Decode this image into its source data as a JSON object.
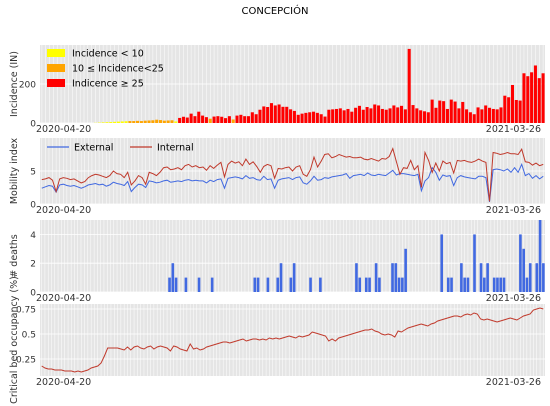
{
  "title": "CONCEPCIÓN",
  "colors": {
    "panel_bg": "#e5e5e5",
    "grid": "#ffffff",
    "low": "#ffff00",
    "mid": "#ffa500",
    "high": "#ff0000",
    "external": "#4169e1",
    "internal": "#c0392b",
    "deaths": "#4169e1",
    "beds": "#c0392b"
  },
  "chart_data": [
    {
      "type": "bar",
      "ylabel": "Incidence (IN)",
      "x_start_label": "2020-04-20",
      "x_end_label": "2021-03-26",
      "ylim": [
        0,
        400
      ],
      "yticks": [
        0,
        200
      ],
      "legend": {
        "placement": "top-left",
        "entries": [
          "Incidence < 10",
          "10 ≤ Incidence<25",
          "Indicence ≥ 25"
        ]
      },
      "values": [
        0,
        0,
        0,
        0,
        0,
        0,
        0,
        0,
        0,
        0,
        0,
        0,
        0,
        0,
        1,
        2,
        3,
        4,
        5,
        6,
        7,
        8,
        9,
        10,
        10,
        11,
        10,
        12,
        13,
        14,
        17,
        15,
        12,
        13,
        14,
        8,
        26,
        32,
        28,
        48,
        35,
        58,
        38,
        30,
        22,
        33,
        35,
        32,
        25,
        35,
        18,
        38,
        42,
        35,
        35,
        55,
        45,
        68,
        85,
        82,
        102,
        90,
        95,
        83,
        83,
        70,
        62,
        42,
        48,
        52,
        55,
        58,
        52,
        45,
        33,
        68,
        70,
        72,
        75,
        65,
        72,
        58,
        78,
        88,
        68,
        82,
        75,
        95,
        90,
        72,
        68,
        75,
        90,
        80,
        88,
        70,
        380,
        92,
        75,
        65,
        60,
        55,
        120,
        78,
        115,
        112,
        72,
        120,
        110,
        75,
        108,
        70,
        55,
        45,
        80,
        70,
        90,
        78,
        72,
        70,
        80,
        140,
        132,
        195,
        118,
        115,
        255,
        240,
        260,
        295,
        230,
        255
      ],
      "categories_note": ""
    },
    {
      "type": "line",
      "ylabel": "Mobility index",
      "x_start_label": "2020-04-20",
      "x_end_label": "2021-03-26",
      "ylim": [
        0,
        10
      ],
      "yticks": [
        0,
        5
      ],
      "legend": {
        "placement": "top-left",
        "entries": [
          "External",
          "Internal"
        ]
      },
      "series": [
        {
          "name": "External",
          "values": [
            2.4,
            2.6,
            2.8,
            2.7,
            1.8,
            2.9,
            3.0,
            2.8,
            2.7,
            2.8,
            2.6,
            2.4,
            2.6,
            2.9,
            3.0,
            3.1,
            2.9,
            3.0,
            2.7,
            2.9,
            3.3,
            3.1,
            3.0,
            2.8,
            3.4,
            1.9,
            2.5,
            3.0,
            2.9,
            2.5,
            3.5,
            3.4,
            3.2,
            3.3,
            3.5,
            3.6,
            3.3,
            3.4,
            3.5,
            3.4,
            3.6,
            3.7,
            3.5,
            3.6,
            3.5,
            3.5,
            3.2,
            3.6,
            3.4,
            3.7,
            3.8,
            2.4,
            3.9,
            4.0,
            4.1,
            4.0,
            3.8,
            4.3,
            3.9,
            4.0,
            3.7,
            3.6,
            4.2,
            3.7,
            3.8,
            2.4,
            3.6,
            3.8,
            3.9,
            4.0,
            3.7,
            4.0,
            4.1,
            3.2,
            3.0,
            3.5,
            4.2,
            3.6,
            3.7,
            4.0,
            3.9,
            4.1,
            4.2,
            4.3,
            4.4,
            4.6,
            3.9,
            4.3,
            4.4,
            4.5,
            4.3,
            4.7,
            4.4,
            4.3,
            4.5,
            4.4,
            4.3,
            4.7,
            5.1,
            4.4,
            4.6,
            4.6,
            4.5,
            4.4,
            4.3,
            4.5,
            2.0,
            3.5,
            4.0,
            5.5,
            4.8,
            3.6,
            4.4,
            4.2,
            4.3,
            2.8,
            4.0,
            4.3,
            4.1,
            4.0,
            3.9,
            3.8,
            4.2,
            4.2,
            4.0,
            0.3,
            5.2,
            5.3,
            5.2,
            5.0,
            5.3,
            4.8,
            5.5,
            4.8,
            6.0,
            4.3,
            4.6,
            3.9,
            4.3,
            3.8,
            4.2
          ]
        },
        {
          "name": "Internal",
          "values": [
            3.7,
            3.8,
            4.0,
            3.6,
            1.9,
            3.8,
            4.0,
            3.9,
            3.7,
            3.8,
            3.5,
            3.2,
            3.4,
            4.0,
            4.3,
            4.5,
            4.4,
            4.2,
            4.0,
            4.3,
            5.0,
            4.6,
            4.5,
            4.0,
            4.8,
            2.9,
            3.5,
            4.3,
            4.0,
            3.0,
            4.8,
            4.6,
            4.3,
            4.8,
            5.5,
            5.6,
            5.2,
            5.3,
            5.5,
            5.2,
            5.8,
            6.0,
            5.6,
            5.8,
            5.5,
            5.6,
            5.1,
            5.8,
            5.4,
            5.9,
            6.3,
            4.1,
            6.0,
            6.5,
            6.2,
            6.4,
            5.8,
            6.8,
            6.0,
            6.4,
            5.7,
            4.8,
            5.7,
            6.0,
            5.8,
            3.9,
            5.4,
            5.3,
            5.5,
            5.6,
            5.0,
            5.6,
            5.8,
            4.5,
            4.2,
            5.2,
            7.1,
            5.6,
            6.5,
            7.5,
            7.6,
            7.0,
            7.2,
            7.5,
            7.3,
            7.1,
            7.2,
            7.0,
            7.0,
            7.1,
            6.8,
            6.7,
            6.9,
            6.7,
            6.5,
            6.9,
            6.8,
            7.2,
            8.4,
            6.4,
            4.5,
            5.5,
            5.4,
            6.6,
            5.2,
            5.8,
            2.5,
            7.8,
            6.6,
            4.8,
            6.2,
            5.0,
            6.5,
            6.1,
            6.3,
            4.7,
            6.6,
            6.5,
            6.6,
            6.4,
            6.3,
            6.5,
            6.8,
            6.5,
            6.3,
            0.4,
            7.8,
            7.7,
            7.5,
            7.6,
            7.8,
            7.6,
            7.6,
            7.5,
            8.3,
            6.4,
            6.3,
            5.9,
            6.2,
            5.8,
            6.0
          ]
        }
      ]
    },
    {
      "type": "bar",
      "ylabel": "# deaths",
      "x_start_label": "2020-04-20",
      "x_end_label": "2021-03-26",
      "ylim": [
        0,
        5
      ],
      "yticks": [
        0,
        2,
        4
      ],
      "values": [
        0,
        0,
        0,
        0,
        0,
        0,
        0,
        0,
        0,
        0,
        0,
        0,
        0,
        0,
        0,
        0,
        0,
        0,
        0,
        0,
        0,
        0,
        0,
        0,
        0,
        0,
        0,
        0,
        0,
        0,
        0,
        0,
        0,
        0,
        0,
        0,
        0,
        0,
        0,
        1,
        2,
        1,
        0,
        0,
        1,
        0,
        0,
        0,
        1,
        0,
        0,
        0,
        1,
        0,
        0,
        0,
        0,
        0,
        0,
        0,
        0,
        0,
        0,
        0,
        0,
        1,
        1,
        0,
        0,
        1,
        0,
        0,
        1,
        2,
        0,
        0,
        1,
        2,
        0,
        0,
        0,
        0,
        1,
        0,
        0,
        1,
        0,
        0,
        0,
        0,
        0,
        0,
        0,
        0,
        0,
        0,
        2,
        1,
        0,
        1,
        1,
        0,
        2,
        1,
        0,
        0,
        0,
        2,
        2,
        1,
        1,
        3,
        0,
        0,
        0,
        0,
        0,
        0,
        0,
        0,
        0,
        0,
        4,
        0,
        1,
        1,
        0,
        0,
        2,
        1,
        1,
        0,
        4,
        0,
        2,
        1,
        2,
        0,
        1,
        1,
        1,
        1,
        0,
        0,
        0,
        0,
        4,
        3,
        1,
        2,
        0,
        2,
        5,
        2
      ]
    },
    {
      "type": "line",
      "ylabel": "Critical bed occupancy (%)",
      "x_start_label": "2020-04-20",
      "x_end_label": "2021-03-26",
      "ylim": [
        0.08,
        0.8
      ],
      "yticks": [
        0.25,
        0.5,
        0.75
      ],
      "series": [
        {
          "name": "",
          "values": [
            0.18,
            0.16,
            0.15,
            0.15,
            0.14,
            0.14,
            0.14,
            0.13,
            0.13,
            0.13,
            0.12,
            0.13,
            0.12,
            0.13,
            0.14,
            0.16,
            0.17,
            0.18,
            0.21,
            0.28,
            0.36,
            0.36,
            0.36,
            0.36,
            0.35,
            0.34,
            0.37,
            0.34,
            0.37,
            0.38,
            0.36,
            0.35,
            0.37,
            0.38,
            0.35,
            0.37,
            0.38,
            0.37,
            0.36,
            0.33,
            0.38,
            0.37,
            0.35,
            0.34,
            0.33,
            0.4,
            0.35,
            0.36,
            0.34,
            0.35,
            0.37,
            0.38,
            0.39,
            0.4,
            0.41,
            0.42,
            0.42,
            0.41,
            0.42,
            0.43,
            0.44,
            0.45,
            0.43,
            0.44,
            0.45,
            0.45,
            0.44,
            0.45,
            0.44,
            0.46,
            0.45,
            0.46,
            0.45,
            0.46,
            0.47,
            0.48,
            0.47,
            0.46,
            0.48,
            0.47,
            0.48,
            0.49,
            0.52,
            0.51,
            0.5,
            0.49,
            0.48,
            0.43,
            0.45,
            0.43,
            0.46,
            0.47,
            0.48,
            0.49,
            0.5,
            0.51,
            0.52,
            0.53,
            0.54,
            0.54,
            0.55,
            0.53,
            0.52,
            0.5,
            0.49,
            0.5,
            0.49,
            0.47,
            0.53,
            0.52,
            0.54,
            0.56,
            0.57,
            0.58,
            0.59,
            0.6,
            0.59,
            0.58,
            0.6,
            0.61,
            0.63,
            0.64,
            0.65,
            0.66,
            0.67,
            0.68,
            0.68,
            0.67,
            0.69,
            0.7,
            0.69,
            0.71,
            0.7,
            0.65,
            0.64,
            0.65,
            0.64,
            0.63,
            0.62,
            0.63,
            0.64,
            0.65,
            0.66,
            0.65,
            0.64,
            0.66,
            0.68,
            0.69,
            0.7,
            0.74,
            0.75,
            0.76,
            0.75
          ]
        }
      ]
    }
  ]
}
